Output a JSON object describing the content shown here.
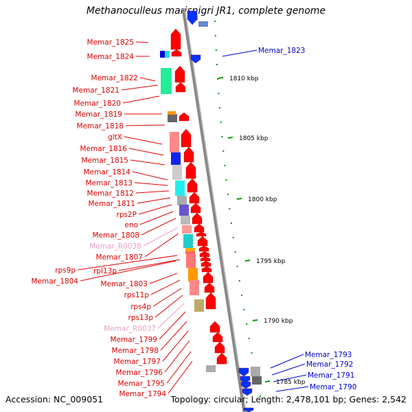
{
  "title": "Methanoculleus marisnigri JR1, complete genome",
  "footer": {
    "accession": "Accession: NC_009051",
    "topology": "Topology: circular; Length: 2,478,101 bp; Genes: 2,542"
  },
  "colors": {
    "left_label": "#dd0000",
    "right_label": "#0000cc",
    "rna_label": "#e8a0c8",
    "forward_gene": "#ff0000",
    "reverse_gene": "#0033ff",
    "backbone": "#888888",
    "tick": "#009900"
  },
  "scale_ticks": [
    "1810 kbp",
    "1805 kbp",
    "1800 kbp",
    "1795 kbp",
    "1790 kbp",
    "1785 kbp"
  ],
  "left_labels": [
    "Memar_1825",
    "Memar_1824",
    "Memar_1822",
    "Memar_1821",
    "Memar_1820",
    "Memar_1819",
    "Memar_1818",
    "gltX",
    "Memar_1816",
    "Memar_1815",
    "Memar_1814",
    "Memar_1813",
    "Memar_1812",
    "Memar_1811",
    "rps2P",
    "eno",
    "Memar_1808",
    "Memar_R0038",
    "Memar_1807",
    "rpl13p",
    "rps9p",
    "Memar_1804",
    "Memar_1803",
    "rps11p",
    "rps4p",
    "rps13p",
    "Memar_R0037",
    "Memar_1799",
    "Memar_1798",
    "Memar_1797",
    "Memar_1796",
    "Memar_1795",
    "Memar_1794"
  ],
  "right_labels": [
    "Memar_1823",
    "Memar_1793",
    "Memar_1792",
    "Memar_1791",
    "Memar_1790"
  ]
}
